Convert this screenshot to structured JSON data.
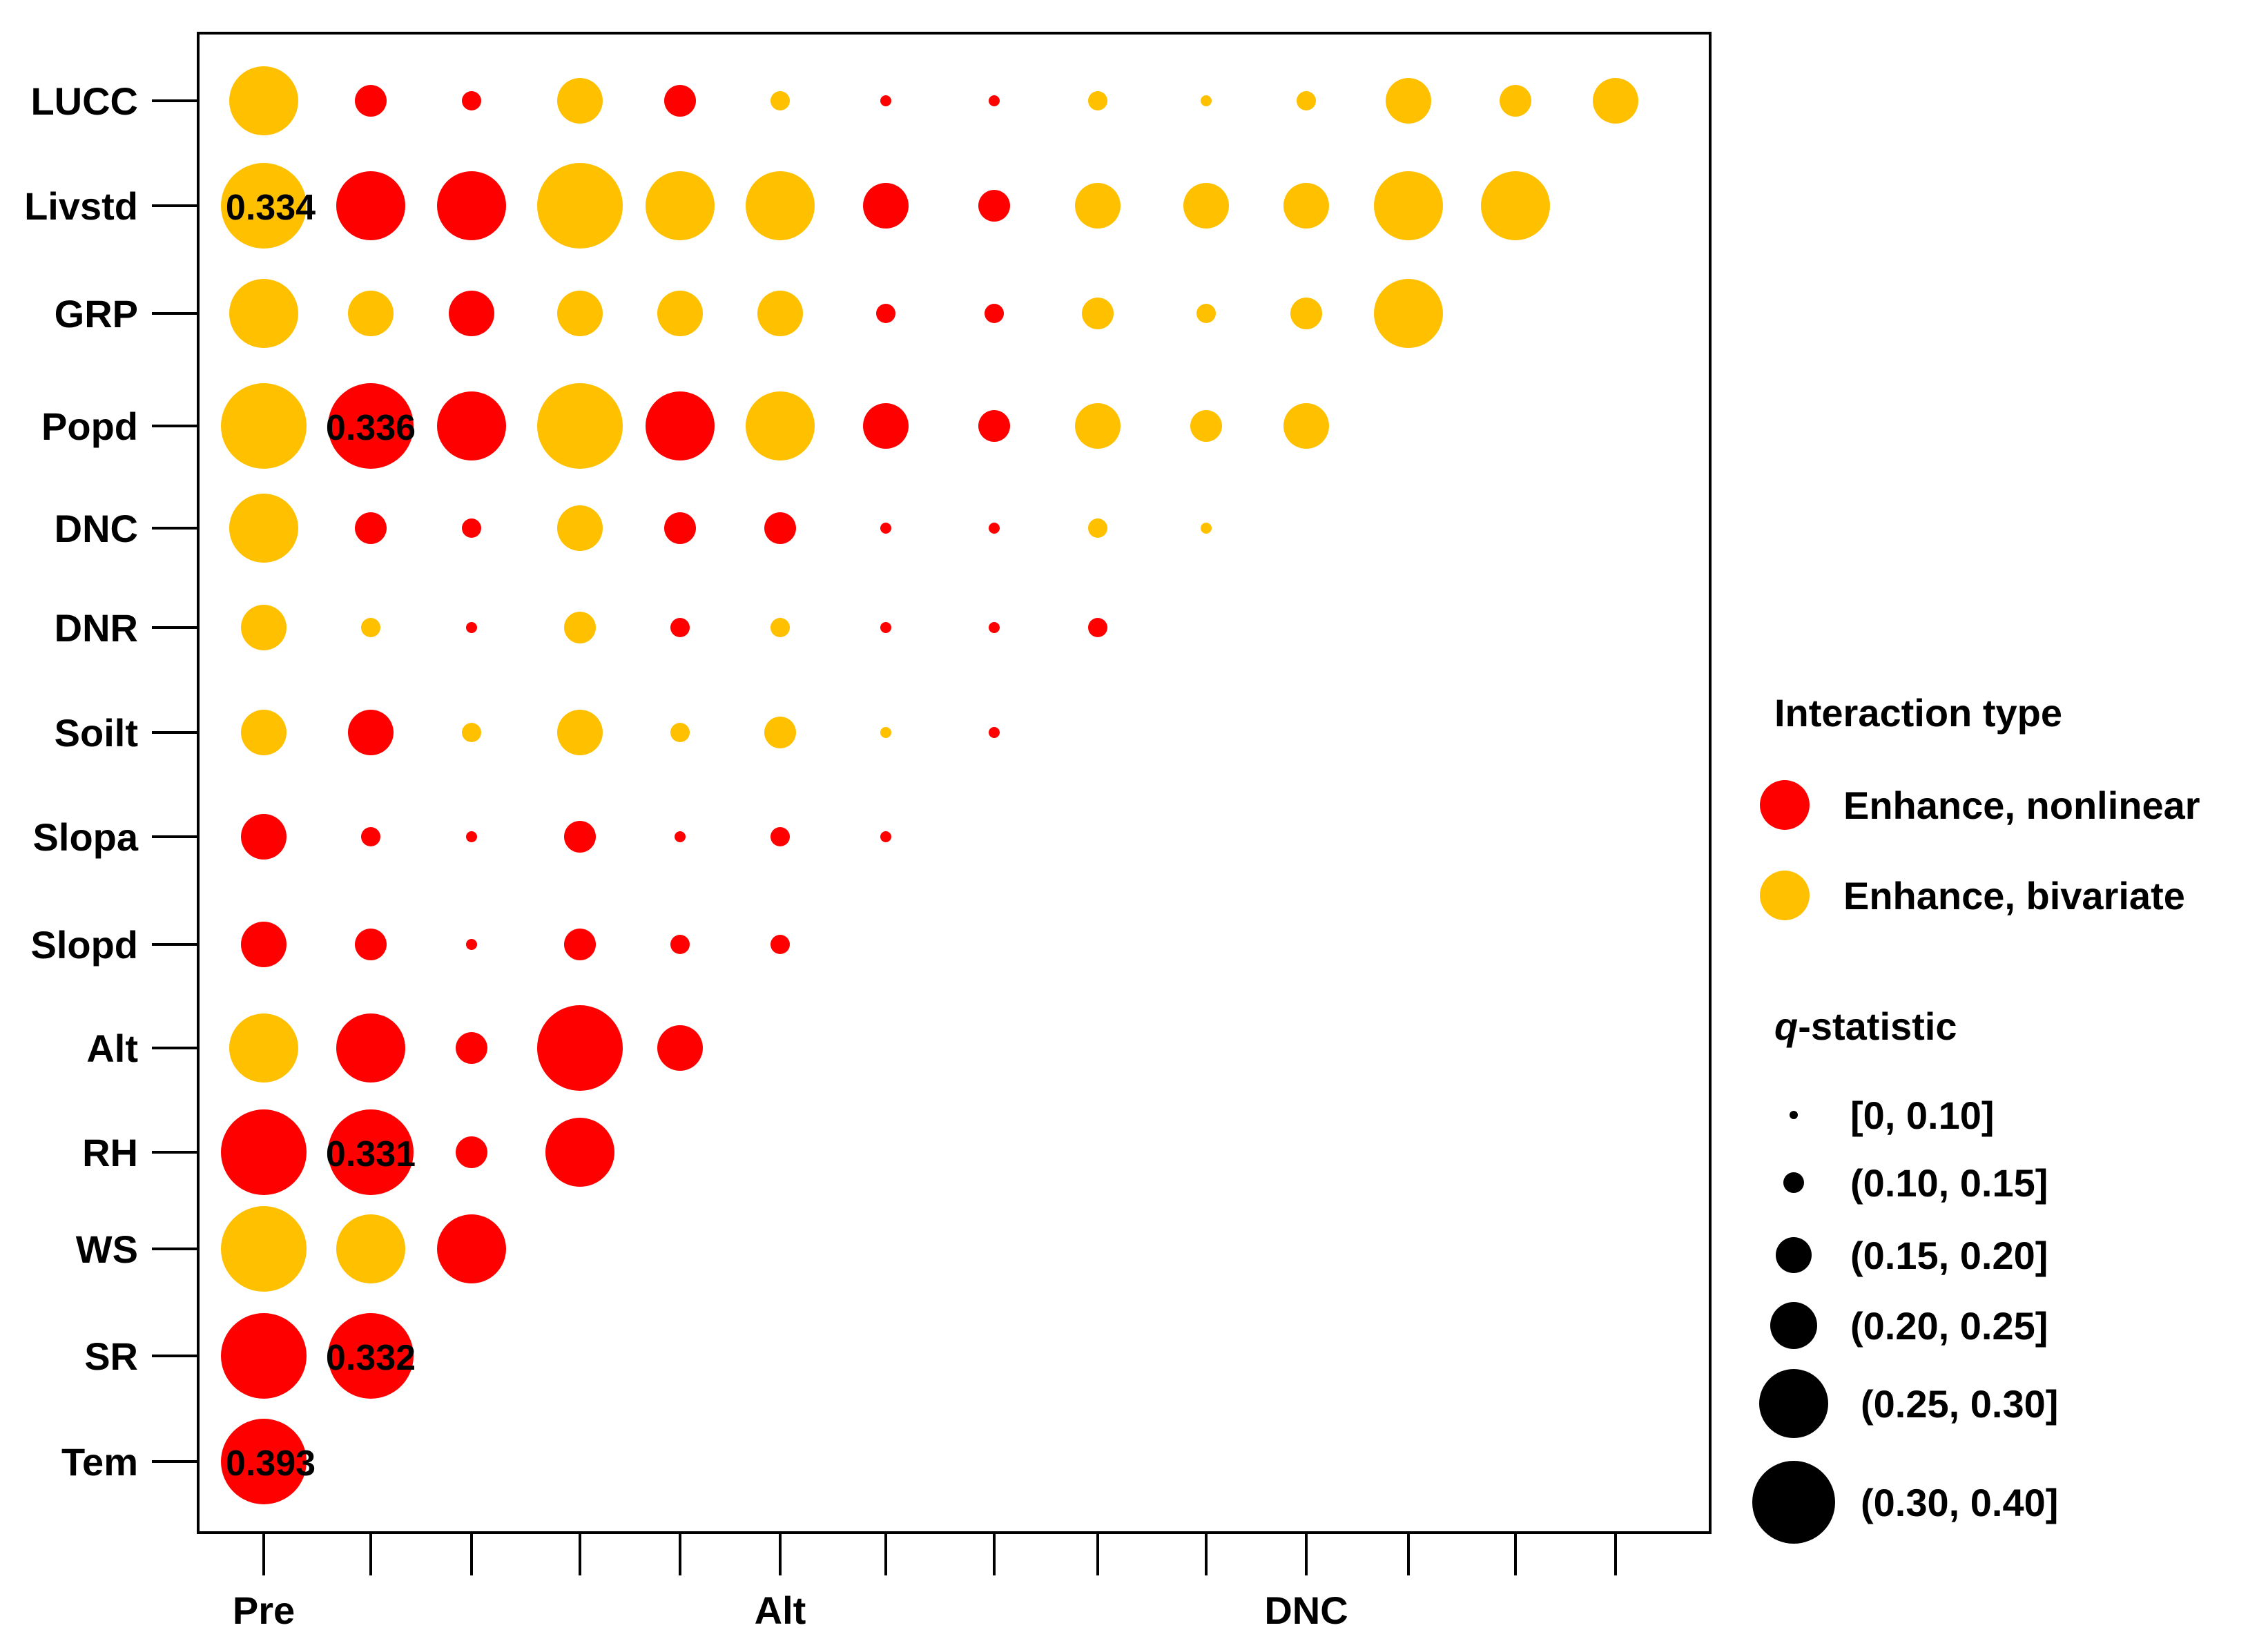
{
  "colors": {
    "nonlinear": "#ff0000",
    "bivariate": "#ffc000",
    "axis": "#000000",
    "legend_size": "#000000"
  },
  "chart_data": {
    "type": "scatter",
    "title": "",
    "y_categories": [
      "LUCC",
      "Livstd",
      "GRP",
      "Popd",
      "DNC",
      "DNR",
      "Soilt",
      "Slopa",
      "Slopd",
      "Alt",
      "RH",
      "WS",
      "SR",
      "Tem"
    ],
    "x_tick_count": 14,
    "x_tick_labels": [
      {
        "index": 0,
        "label": "Pre"
      },
      {
        "index": 5,
        "label": "Alt"
      },
      {
        "index": 10,
        "label": "DNC"
      }
    ],
    "size_classes": [
      "[0,  0.10]",
      "(0.10, 0.15]",
      "(0.15, 0.20]",
      "(0.20, 0.25]",
      "(0.25, 0.30]",
      "(0.30, 0.40]"
    ],
    "size_class_meaning": "index 0-5 into size_classes",
    "type_codes": {
      "R": "Enhance, nonlinear",
      "Y": "Enhance, bivariate"
    },
    "rows": [
      {
        "name": "LUCC",
        "cells": [
          [
            "Y",
            4
          ],
          [
            "R",
            2
          ],
          [
            "R",
            1
          ],
          [
            "Y",
            3
          ],
          [
            "R",
            2
          ],
          [
            "Y",
            1
          ],
          [
            "R",
            0
          ],
          [
            "R",
            0
          ],
          [
            "Y",
            1
          ],
          [
            "Y",
            0
          ],
          [
            "Y",
            1
          ],
          [
            "Y",
            3
          ],
          [
            "Y",
            2
          ],
          [
            "Y",
            3
          ]
        ]
      },
      {
        "name": "Livstd",
        "cells": [
          [
            "Y",
            5
          ],
          [
            "R",
            4
          ],
          [
            "R",
            4
          ],
          [
            "Y",
            5
          ],
          [
            "Y",
            4
          ],
          [
            "Y",
            4
          ],
          [
            "R",
            3
          ],
          [
            "R",
            2
          ],
          [
            "Y",
            3
          ],
          [
            "Y",
            3
          ],
          [
            "Y",
            3
          ],
          [
            "Y",
            4
          ],
          [
            "Y",
            4
          ]
        ]
      },
      {
        "name": "GRP",
        "cells": [
          [
            "Y",
            4
          ],
          [
            "Y",
            3
          ],
          [
            "R",
            3
          ],
          [
            "Y",
            3
          ],
          [
            "Y",
            3
          ],
          [
            "Y",
            3
          ],
          [
            "R",
            1
          ],
          [
            "R",
            1
          ],
          [
            "Y",
            2
          ],
          [
            "Y",
            1
          ],
          [
            "Y",
            2
          ],
          [
            "Y",
            4
          ]
        ]
      },
      {
        "name": "Popd",
        "cells": [
          [
            "Y",
            5
          ],
          [
            "R",
            5
          ],
          [
            "R",
            4
          ],
          [
            "Y",
            5
          ],
          [
            "R",
            4
          ],
          [
            "Y",
            4
          ],
          [
            "R",
            3
          ],
          [
            "R",
            2
          ],
          [
            "Y",
            3
          ],
          [
            "Y",
            2
          ],
          [
            "Y",
            3
          ]
        ]
      },
      {
        "name": "DNC",
        "cells": [
          [
            "Y",
            4
          ],
          [
            "R",
            2
          ],
          [
            "R",
            1
          ],
          [
            "Y",
            3
          ],
          [
            "R",
            2
          ],
          [
            "R",
            2
          ],
          [
            "R",
            0
          ],
          [
            "R",
            0
          ],
          [
            "Y",
            1
          ],
          [
            "Y",
            0
          ]
        ]
      },
      {
        "name": "DNR",
        "cells": [
          [
            "Y",
            3
          ],
          [
            "Y",
            1
          ],
          [
            "R",
            0
          ],
          [
            "Y",
            2
          ],
          [
            "R",
            1
          ],
          [
            "Y",
            1
          ],
          [
            "R",
            0
          ],
          [
            "R",
            0
          ],
          [
            "R",
            1
          ]
        ]
      },
      {
        "name": "Soilt",
        "cells": [
          [
            "Y",
            3
          ],
          [
            "R",
            3
          ],
          [
            "Y",
            1
          ],
          [
            "Y",
            3
          ],
          [
            "Y",
            1
          ],
          [
            "Y",
            2
          ],
          [
            "Y",
            0
          ],
          [
            "R",
            0
          ]
        ]
      },
      {
        "name": "Slopa",
        "cells": [
          [
            "R",
            3
          ],
          [
            "R",
            1
          ],
          [
            "R",
            0
          ],
          [
            "R",
            2
          ],
          [
            "R",
            0
          ],
          [
            "R",
            1
          ],
          [
            "R",
            0
          ]
        ]
      },
      {
        "name": "Slopd",
        "cells": [
          [
            "R",
            3
          ],
          [
            "R",
            2
          ],
          [
            "R",
            0
          ],
          [
            "R",
            2
          ],
          [
            "R",
            1
          ],
          [
            "R",
            1
          ]
        ]
      },
      {
        "name": "Alt",
        "cells": [
          [
            "Y",
            4
          ],
          [
            "R",
            4
          ],
          [
            "R",
            2
          ],
          [
            "R",
            5
          ],
          [
            "R",
            3
          ]
        ]
      },
      {
        "name": "RH",
        "cells": [
          [
            "R",
            5
          ],
          [
            "R",
            5
          ],
          [
            "R",
            2
          ],
          [
            "R",
            4
          ]
        ]
      },
      {
        "name": "WS",
        "cells": [
          [
            "Y",
            5
          ],
          [
            "Y",
            4
          ],
          [
            "R",
            4
          ]
        ]
      },
      {
        "name": "SR",
        "cells": [
          [
            "R",
            5
          ],
          [
            "R",
            5
          ]
        ]
      },
      {
        "name": "Tem",
        "cells": [
          [
            "R",
            5
          ]
        ]
      }
    ],
    "annotations": [
      {
        "row": "Livstd",
        "col": 0,
        "text": "0.334"
      },
      {
        "row": "Popd",
        "col": 1,
        "text": "0.336"
      },
      {
        "row": "RH",
        "col": 1,
        "text": "0.331"
      },
      {
        "row": "SR",
        "col": 1,
        "text": "0.332"
      },
      {
        "row": "Tem",
        "col": 0,
        "text": "0.393"
      }
    ],
    "legend": {
      "type_title": "Interaction type",
      "type_items": [
        {
          "code": "R",
          "label": "Enhance, nonlinear"
        },
        {
          "code": "Y",
          "label": "Enhance, bivariate"
        }
      ],
      "size_title_italic": "q",
      "size_title_rest": "-statistic",
      "placement": "right"
    }
  }
}
